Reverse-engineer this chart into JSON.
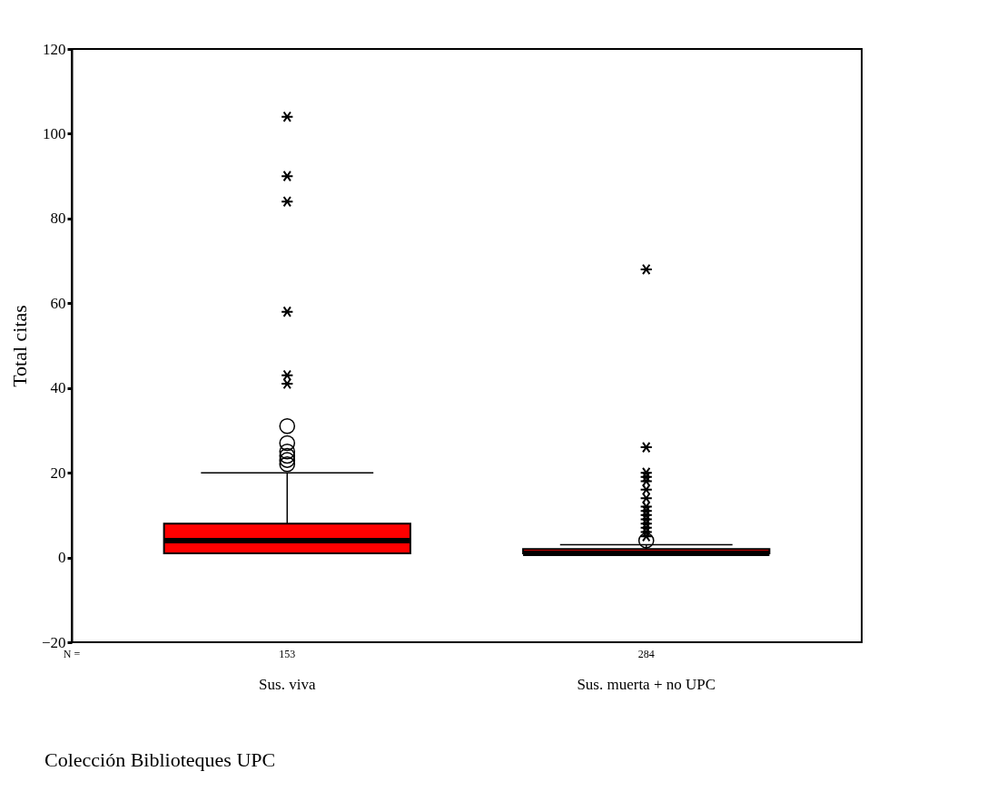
{
  "chart_data": {
    "type": "box",
    "ylabel": "Total citas",
    "categories": [
      "Sus. viva",
      "Sus. muerta + no UPC"
    ],
    "colors": [
      "#ff0000",
      "#ff0000"
    ],
    "boxes": [
      {
        "low": 1,
        "q1": 1,
        "median": 4,
        "q3": 8,
        "high": 20,
        "outliers": [
          22,
          23,
          24,
          25,
          27,
          31
        ]
      },
      {
        "low": 1,
        "q1": 1,
        "median": 1,
        "q3": 2,
        "high": 3,
        "outliers": [
          4
        ]
      }
    ],
    "series": [
      {
        "type": "scatter",
        "marker": "cross",
        "color": "#000000",
        "x": [
          "Sus. viva",
          "Sus. viva",
          "Sus. viva",
          "Sus. viva",
          "Sus. viva",
          "Sus. viva",
          "Sus. muerta + no UPC",
          "Sus. muerta + no UPC",
          "Sus. muerta + no UPC",
          "Sus. muerta + no UPC",
          "Sus. muerta + no UPC",
          "Sus. muerta + no UPC",
          "Sus. muerta + no UPC",
          "Sus. muerta + no UPC",
          "Sus. muerta + no UPC",
          "Sus. muerta + no UPC",
          "Sus. muerta + no UPC",
          "Sus. muerta + no UPC",
          "Sus. muerta + no UPC",
          "Sus. muerta + no UPC",
          "Sus. muerta + no UPC"
        ],
        "values": [
          104,
          90,
          84,
          58,
          43,
          41,
          68,
          26,
          20,
          19,
          18,
          16,
          14,
          12,
          11,
          10,
          9,
          8,
          7,
          6,
          5
        ]
      }
    ],
    "ylim": [
      -20,
      120
    ],
    "yticks": [
      -20,
      0,
      20,
      40,
      60,
      80,
      100,
      120
    ],
    "grid": false,
    "marker": "circle",
    "annotations": [
      "N =",
      "153",
      "284",
      "Colección Biblioteques UPC"
    ]
  }
}
